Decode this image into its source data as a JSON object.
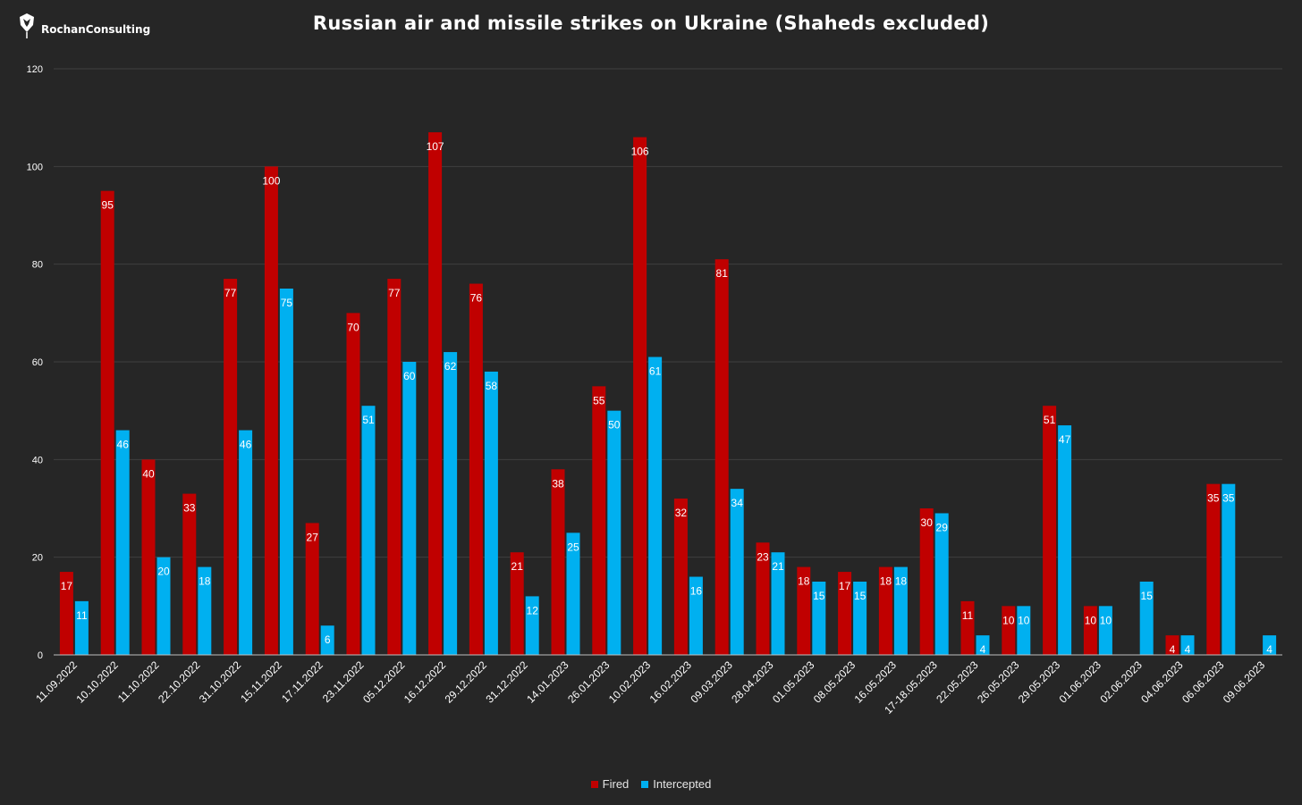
{
  "logo": {
    "text": "RochanConsulting",
    "icon": "shield-eagle-logo"
  },
  "chart_data": {
    "type": "bar",
    "title": "Russian air and missile strikes on Ukraine (Shaheds excluded)",
    "xlabel": "",
    "ylabel": "",
    "ylim": [
      0,
      120
    ],
    "yticks": [
      0,
      20,
      40,
      60,
      80,
      100,
      120
    ],
    "grid": true,
    "legend_position": "bottom",
    "categories": [
      "11.09.2022",
      "10.10.2022",
      "11.10.2022",
      "22.10.2022",
      "31.10.2022",
      "15.11.2022",
      "17.11.2022",
      "23.11.2022",
      "05.12.2022",
      "16.12.2022",
      "29.12.2022",
      "31.12.2022",
      "14.01.2023",
      "26.01.2023",
      "10.02.2023",
      "16.02.2023",
      "09.03.2023",
      "28.04.2023",
      "01.05.2023",
      "08.05.2023",
      "16.05.2023",
      "17-18.05.2023",
      "22.05.2023",
      "26.05.2023",
      "29.05.2023",
      "01.06.2023",
      "02.06.2023",
      "04.06.2023",
      "06.06.2023",
      "09.06.2023"
    ],
    "series": [
      {
        "name": "Fired",
        "color": "#c00000",
        "values": [
          17,
          95,
          40,
          33,
          77,
          100,
          27,
          70,
          77,
          107,
          76,
          21,
          38,
          55,
          106,
          32,
          81,
          23,
          18,
          17,
          18,
          30,
          11,
          10,
          51,
          10,
          null,
          4,
          35,
          null
        ]
      },
      {
        "name": "Intercepted",
        "color": "#00b0f0",
        "values": [
          11,
          46,
          20,
          18,
          46,
          75,
          6,
          51,
          60,
          62,
          58,
          12,
          25,
          50,
          61,
          16,
          34,
          21,
          15,
          15,
          18,
          29,
          4,
          10,
          47,
          10,
          15,
          4,
          35,
          4
        ]
      }
    ]
  },
  "colors": {
    "background": "#262626",
    "grid": "#404040",
    "axis": "#bfbfbf",
    "text": "#ffffff"
  }
}
